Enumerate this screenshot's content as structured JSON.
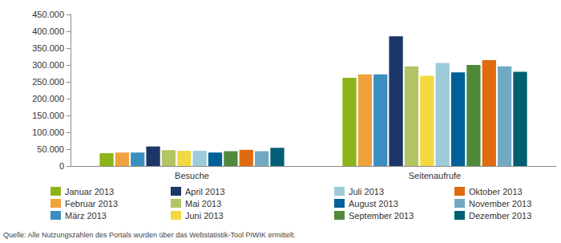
{
  "chart_data": {
    "type": "bar",
    "categories": [
      "Besuche",
      "Seitenaufrufe"
    ],
    "series": [
      {
        "name": "Januar 2013",
        "color": "#8db31a",
        "values": [
          38000,
          262000
        ]
      },
      {
        "name": "Februar 2013",
        "color": "#f0a23c",
        "values": [
          40000,
          272000
        ]
      },
      {
        "name": "März 2013",
        "color": "#3a8fc0",
        "values": [
          40000,
          272000
        ]
      },
      {
        "name": "April 2013",
        "color": "#1c3668",
        "values": [
          58000,
          385000
        ]
      },
      {
        "name": "Mai 2013",
        "color": "#b2c463",
        "values": [
          47000,
          296000
        ]
      },
      {
        "name": "Juni 2013",
        "color": "#f2d940",
        "values": [
          45000,
          268000
        ]
      },
      {
        "name": "Juli 2013",
        "color": "#9dcbd9",
        "values": [
          45000,
          306000
        ]
      },
      {
        "name": "August 2013",
        "color": "#00609a",
        "values": [
          40000,
          278000
        ]
      },
      {
        "name": "September 2013",
        "color": "#4f8a3c",
        "values": [
          44000,
          300000
        ]
      },
      {
        "name": "Oktober 2013",
        "color": "#e06a10",
        "values": [
          48000,
          314000
        ]
      },
      {
        "name": "November 2013",
        "color": "#72a9c2",
        "values": [
          44000,
          296000
        ]
      },
      {
        "name": "Dezember 2013",
        "color": "#005f73",
        "values": [
          54000,
          280000
        ]
      }
    ],
    "ylim": [
      0,
      450000
    ],
    "yticks": [
      0,
      {
        "value": 50000,
        "label": "50.000"
      },
      {
        "value": 100000,
        "label": "100.000"
      },
      {
        "value": 150000,
        "label": "150.000"
      },
      {
        "value": 200000,
        "label": "200.000"
      },
      {
        "value": 250000,
        "label": "250.000"
      },
      {
        "value": 300000,
        "label": "300.000"
      },
      {
        "value": 350000,
        "label": "350.000"
      },
      {
        "value": 400000,
        "label": "400.000"
      },
      {
        "value": 450000,
        "label": "450.000"
      }
    ],
    "grid": false,
    "legend": "bottom",
    "source": "Quelle: Alle Nutzungszahlen des Portals wurden über das Webstatistik-Tool PIWIK ermittelt."
  }
}
